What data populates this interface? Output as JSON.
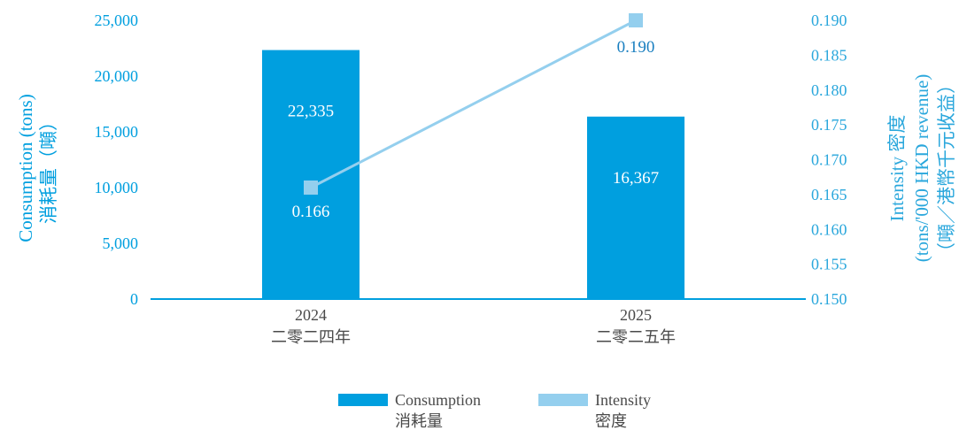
{
  "colors": {
    "consumption": "#009fdf",
    "intensity": "#94cfee",
    "left_axis_text": "#009fdf",
    "right_axis_text": "#2aa7dc",
    "category_text": "#4a4a4a",
    "intensity_label_text": "#1a7fc0"
  },
  "chart_data": {
    "type": "bar",
    "categories": [
      {
        "en": "2024",
        "zh": "二零二四年"
      },
      {
        "en": "2025",
        "zh": "二零二五年"
      }
    ],
    "series": [
      {
        "name": "Consumption",
        "name_zh": "消耗量",
        "type": "bar",
        "axis": "left",
        "values": [
          22335,
          16367
        ],
        "labels": [
          "22,335",
          "16,367"
        ]
      },
      {
        "name": "Intensity",
        "name_zh": "密度",
        "type": "line",
        "axis": "right",
        "values": [
          0.166,
          0.19
        ],
        "labels": [
          "0.166",
          "0.190"
        ]
      }
    ],
    "y_left": {
      "label_en": "Consumption (tons)",
      "label_zh": "消耗量（噸）",
      "ylim": [
        0,
        25000
      ],
      "ticks": [
        0,
        5000,
        10000,
        15000,
        20000,
        25000
      ],
      "tick_labels": [
        "0",
        "5,000",
        "10,000",
        "15,000",
        "20,000",
        "25,000"
      ]
    },
    "y_right": {
      "label_en_1": "Intensity 密度",
      "label_en_2": "(tons/'000 HKD revenue)",
      "label_zh": "（噸／港幣千元收益）",
      "ylim": [
        0.15,
        0.19
      ],
      "ticks": [
        0.15,
        0.155,
        0.16,
        0.165,
        0.17,
        0.175,
        0.18,
        0.185,
        0.19
      ],
      "tick_labels": [
        "0.150",
        "0.155",
        "0.160",
        "0.165",
        "0.170",
        "0.175",
        "0.180",
        "0.185",
        "0.190"
      ]
    },
    "grid": false,
    "legend_position": "bottom-center"
  }
}
